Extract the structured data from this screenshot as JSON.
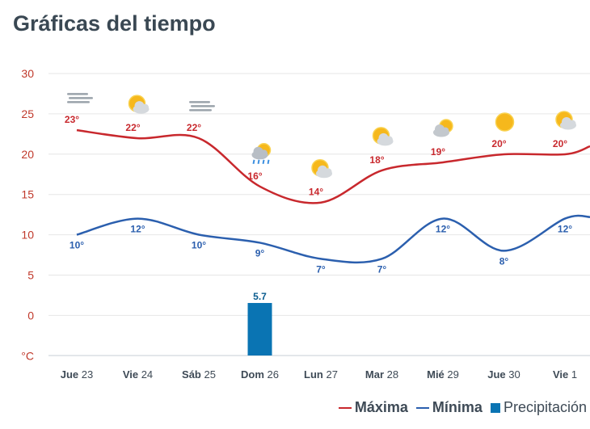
{
  "title": "Gráficas del tiempo",
  "colors": {
    "max": "#c8282d",
    "min": "#2b5fae",
    "precip": "#0a74b3",
    "axis": "#c0392b"
  },
  "legend": {
    "max": "Máxima",
    "min": "Mínima",
    "precip": "Precipitación"
  },
  "chart_data": {
    "type": "line",
    "title": "Gráficas del tiempo",
    "ylabel": "°C",
    "ylim": [
      -5,
      30
    ],
    "yticks": [
      "30",
      "25",
      "20",
      "15",
      "10",
      "5",
      "0",
      "°C"
    ],
    "categories": [
      {
        "dow": "Jue",
        "day": "23"
      },
      {
        "dow": "Vie",
        "day": "24"
      },
      {
        "dow": "Sáb",
        "day": "25"
      },
      {
        "dow": "Dom",
        "day": "26"
      },
      {
        "dow": "Lun",
        "day": "27"
      },
      {
        "dow": "Mar",
        "day": "28"
      },
      {
        "dow": "Mié",
        "day": "29"
      },
      {
        "dow": "Jue",
        "day": "30"
      },
      {
        "dow": "Vie",
        "day": "1"
      }
    ],
    "icons": [
      "fog-icon",
      "sun-cloud-icon",
      "fog-icon",
      "rain-icon",
      "sun-cloud-icon",
      "sun-cloud-icon",
      "cloud-sun-icon",
      "sun-icon",
      "sun-cloud-icon"
    ],
    "series": [
      {
        "name": "Máxima",
        "type": "line",
        "values": [
          23,
          22,
          22,
          16,
          14,
          18,
          19,
          20,
          20
        ],
        "labels": [
          "23°",
          "22°",
          "22°",
          "16°",
          "14°",
          "18°",
          "19°",
          "20°",
          "20°"
        ]
      },
      {
        "name": "Mínima",
        "type": "line",
        "values": [
          10,
          12,
          10,
          9,
          7,
          7,
          12,
          8,
          12
        ],
        "labels": [
          "10°",
          "12°",
          "10°",
          "9°",
          "7°",
          "7°",
          "12°",
          "8°",
          "12°"
        ]
      },
      {
        "name": "Precipitación",
        "type": "bar",
        "values": [
          0,
          0,
          0,
          5.7,
          0,
          0,
          0,
          0,
          0
        ],
        "labels": [
          "",
          "",
          "",
          "5.7",
          "",
          "",
          "",
          "",
          ""
        ]
      }
    ]
  }
}
